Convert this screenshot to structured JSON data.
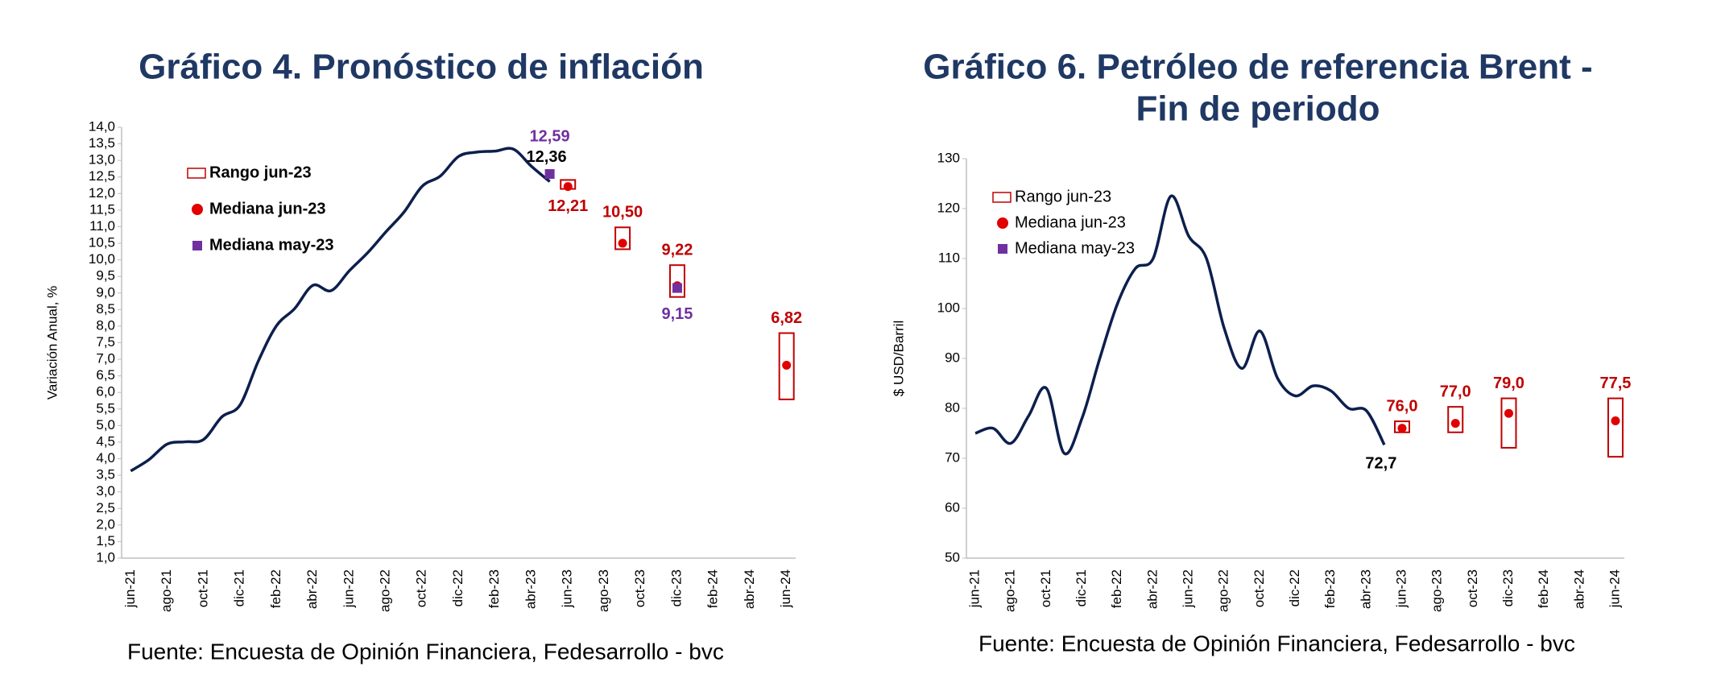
{
  "chart_data": [
    {
      "type": "line",
      "title": "Gráfico 4. Pronóstico de inflación",
      "y_label": "Variación Anual, %",
      "source": "Fuente: Encuesta de Opinión Financiera, Fedesarrollo - bvc",
      "categories": [
        "jun-21",
        null,
        "ago-21",
        null,
        "oct-21",
        null,
        "dic-21",
        null,
        "feb-22",
        null,
        "abr-22",
        null,
        "jun-22",
        null,
        "ago-22",
        null,
        "oct-22",
        null,
        "dic-22",
        null,
        "feb-23",
        null,
        "abr-23",
        null,
        "jun-23",
        null,
        "ago-23",
        null,
        "oct-23",
        null,
        "dic-23",
        null,
        "feb-24",
        null,
        "abr-24",
        null,
        "jun-24"
      ],
      "ylim": [
        1.0,
        14.0
      ],
      "yticks": [
        {
          "value": 1.0,
          "label": "1,0"
        },
        {
          "value": 1.5,
          "label": "1,5"
        },
        {
          "value": 2.0,
          "label": "2,0"
        },
        {
          "value": 2.5,
          "label": "2,5"
        },
        {
          "value": 3.0,
          "label": "3,0"
        },
        {
          "value": 3.5,
          "label": "3,5"
        },
        {
          "value": 4.0,
          "label": "4,0"
        },
        {
          "value": 4.5,
          "label": "4,5"
        },
        {
          "value": 5.0,
          "label": "5,0"
        },
        {
          "value": 5.5,
          "label": "5,5"
        },
        {
          "value": 6.0,
          "label": "6,0"
        },
        {
          "value": 6.5,
          "label": "6,5"
        },
        {
          "value": 7.0,
          "label": "7,0"
        },
        {
          "value": 7.5,
          "label": "7,5"
        },
        {
          "value": 8.0,
          "label": "8,0"
        },
        {
          "value": 8.5,
          "label": "8,5"
        },
        {
          "value": 9.0,
          "label": "9,0"
        },
        {
          "value": 9.5,
          "label": "9,5"
        },
        {
          "value": 10.0,
          "label": "10,0"
        },
        {
          "value": 10.5,
          "label": "10,5"
        },
        {
          "value": 11.0,
          "label": "11,0"
        },
        {
          "value": 11.5,
          "label": "11,5"
        },
        {
          "value": 12.0,
          "label": "12,0"
        },
        {
          "value": 12.5,
          "label": "12,5"
        },
        {
          "value": 13.0,
          "label": "13,0"
        },
        {
          "value": 13.5,
          "label": "13,5"
        },
        {
          "value": 14.0,
          "label": "14,0"
        }
      ],
      "legend": "upper left",
      "legend_bold": true,
      "series": [
        {
          "type": "line",
          "color": "#0c1f4d",
          "values": [
            3.63,
            3.97,
            4.44,
            4.51,
            4.58,
            5.26,
            5.62,
            6.94,
            8.01,
            8.53,
            9.23,
            9.07,
            9.67,
            10.21,
            10.84,
            11.44,
            12.22,
            12.53,
            13.12,
            13.25,
            13.28,
            13.34,
            12.82,
            12.36,
            null,
            null,
            null,
            null,
            null,
            null,
            null,
            null,
            null,
            null,
            null,
            null,
            null
          ],
          "value_labels": [
            null,
            null,
            null,
            null,
            null,
            null,
            null,
            null,
            null,
            null,
            null,
            null,
            null,
            null,
            null,
            null,
            null,
            null,
            null,
            null,
            null,
            null,
            null,
            "12,36",
            null,
            null,
            null,
            null,
            null,
            null,
            null,
            null,
            null,
            null,
            null,
            null,
            null
          ]
        },
        {
          "type": "box",
          "name": "Rango jun-23",
          "color": "#c00000",
          "low": [
            null,
            null,
            null,
            null,
            null,
            null,
            null,
            null,
            null,
            null,
            null,
            null,
            null,
            null,
            null,
            null,
            null,
            null,
            null,
            null,
            null,
            null,
            null,
            null,
            12.14,
            null,
            null,
            10.32,
            null,
            null,
            8.88,
            null,
            null,
            null,
            null,
            null,
            5.79
          ],
          "high": [
            null,
            null,
            null,
            null,
            null,
            null,
            null,
            null,
            null,
            null,
            null,
            null,
            null,
            null,
            null,
            null,
            null,
            null,
            null,
            null,
            null,
            null,
            null,
            null,
            12.41,
            null,
            null,
            10.98,
            null,
            null,
            9.84,
            null,
            null,
            null,
            null,
            null,
            7.79
          ]
        },
        {
          "type": "point",
          "marker": "circle",
          "name": "Mediana jun-23",
          "color": "#e00000",
          "label_color": "#c00000",
          "values": [
            null,
            null,
            null,
            null,
            null,
            null,
            null,
            null,
            null,
            null,
            null,
            null,
            null,
            null,
            null,
            null,
            null,
            null,
            null,
            null,
            null,
            null,
            null,
            null,
            12.21,
            null,
            null,
            10.5,
            null,
            null,
            9.22,
            null,
            null,
            null,
            null,
            null,
            6.82
          ],
          "value_labels": [
            null,
            null,
            null,
            null,
            null,
            null,
            null,
            null,
            null,
            null,
            null,
            null,
            null,
            null,
            null,
            null,
            null,
            null,
            null,
            null,
            null,
            null,
            null,
            null,
            "12,21",
            null,
            null,
            "10,50",
            null,
            null,
            "9,22",
            null,
            null,
            null,
            null,
            null,
            "6,82"
          ]
        },
        {
          "type": "point",
          "marker": "square",
          "name": "Mediana may-23",
          "color": "#7030a0",
          "label_color": "#7030a0",
          "values": [
            null,
            null,
            null,
            null,
            null,
            null,
            null,
            null,
            null,
            null,
            null,
            null,
            null,
            null,
            null,
            null,
            null,
            null,
            null,
            null,
            null,
            null,
            null,
            12.59,
            null,
            null,
            null,
            null,
            null,
            null,
            9.15,
            null,
            null,
            null,
            null,
            null,
            null
          ],
          "value_labels": [
            null,
            null,
            null,
            null,
            null,
            null,
            null,
            null,
            null,
            null,
            null,
            null,
            null,
            null,
            null,
            null,
            null,
            null,
            null,
            null,
            null,
            null,
            null,
            "12,59",
            null,
            null,
            null,
            null,
            null,
            null,
            "9,15",
            null,
            null,
            null,
            null,
            null,
            null
          ]
        }
      ]
    },
    {
      "type": "line",
      "title": [
        "Gráfico 6. Petróleo de referencia Brent -",
        "Fin de periodo"
      ],
      "y_label": "$ USD/Barril",
      "source": "Fuente: Encuesta de Opinión Financiera, Fedesarrollo - bvc",
      "categories": [
        "jun-21",
        null,
        "ago-21",
        null,
        "oct-21",
        null,
        "dic-21",
        null,
        "feb-22",
        null,
        "abr-22",
        null,
        "jun-22",
        null,
        "ago-22",
        null,
        "oct-22",
        null,
        "dic-22",
        null,
        "feb-23",
        null,
        "abr-23",
        null,
        "jun-23",
        null,
        "ago-23",
        null,
        "oct-23",
        null,
        "dic-23",
        null,
        "feb-24",
        null,
        "abr-24",
        null,
        "jun-24"
      ],
      "ylim": [
        50,
        130
      ],
      "yticks": [
        50,
        60,
        70,
        80,
        90,
        100,
        110,
        120,
        130
      ],
      "legend": "upper left",
      "legend_bold": false,
      "series": [
        {
          "type": "line",
          "color": "#0c1f4d",
          "values": [
            75,
            76,
            73,
            78.5,
            84,
            71,
            78,
            90,
            101,
            108,
            110,
            122.5,
            114.5,
            110,
            96,
            88,
            95.5,
            86,
            82.5,
            84.5,
            83.5,
            80,
            79.5,
            72.7,
            null,
            null,
            null,
            null,
            null,
            null,
            null,
            null,
            null,
            null,
            null,
            null,
            null
          ],
          "value_labels": [
            null,
            null,
            null,
            null,
            null,
            null,
            null,
            null,
            null,
            null,
            null,
            null,
            null,
            null,
            null,
            null,
            null,
            null,
            null,
            null,
            null,
            null,
            null,
            "72,7",
            null,
            null,
            null,
            null,
            null,
            null,
            null,
            null,
            null,
            null,
            null,
            null,
            null
          ]
        },
        {
          "type": "box",
          "name": "Rango jun-23",
          "color": "#c00000",
          "low": [
            null,
            null,
            null,
            null,
            null,
            null,
            null,
            null,
            null,
            null,
            null,
            null,
            null,
            null,
            null,
            null,
            null,
            null,
            null,
            null,
            null,
            null,
            null,
            null,
            75.2,
            null,
            null,
            75.2,
            null,
            null,
            72.1,
            null,
            null,
            null,
            null,
            null,
            70.3
          ],
          "high": [
            null,
            null,
            null,
            null,
            null,
            null,
            null,
            null,
            null,
            null,
            null,
            null,
            null,
            null,
            null,
            null,
            null,
            null,
            null,
            null,
            null,
            null,
            null,
            null,
            77.4,
            null,
            null,
            80.3,
            null,
            null,
            82.0,
            null,
            null,
            null,
            null,
            null,
            82.0
          ]
        },
        {
          "type": "point",
          "marker": "circle",
          "name": "Mediana jun-23",
          "color": "#e00000",
          "label_color": "#c00000",
          "values": [
            null,
            null,
            null,
            null,
            null,
            null,
            null,
            null,
            null,
            null,
            null,
            null,
            null,
            null,
            null,
            null,
            null,
            null,
            null,
            null,
            null,
            null,
            null,
            null,
            76.0,
            null,
            null,
            77.0,
            null,
            null,
            79.0,
            null,
            null,
            null,
            null,
            null,
            77.5
          ],
          "value_labels": [
            null,
            null,
            null,
            null,
            null,
            null,
            null,
            null,
            null,
            null,
            null,
            null,
            null,
            null,
            null,
            null,
            null,
            null,
            null,
            null,
            null,
            null,
            null,
            null,
            "76,0",
            null,
            null,
            "77,0",
            null,
            null,
            "79,0",
            null,
            null,
            null,
            null,
            null,
            "77,5"
          ]
        },
        {
          "type": "point",
          "marker": "square",
          "name": "Mediana may-23",
          "color": "#7030a0",
          "label_color": "#7030a0",
          "values": [
            null,
            null,
            null,
            null,
            null,
            null,
            null,
            null,
            null,
            null,
            null,
            null,
            null,
            null,
            null,
            null,
            null,
            null,
            null,
            null,
            null,
            null,
            null,
            null,
            null,
            null,
            null,
            null,
            null,
            null,
            null,
            null,
            null,
            null,
            null,
            null,
            null
          ]
        }
      ]
    }
  ]
}
